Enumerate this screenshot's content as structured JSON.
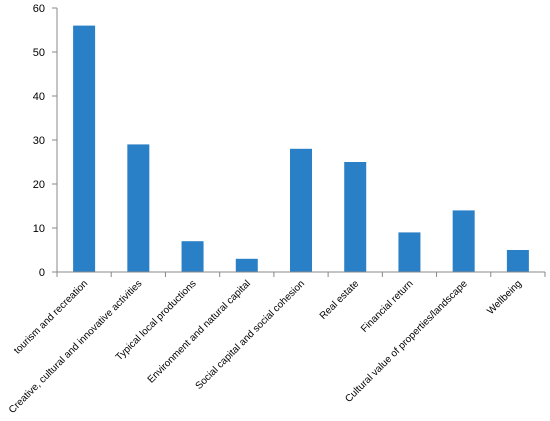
{
  "chart_data": {
    "type": "bar",
    "title": "",
    "xlabel": "",
    "ylabel": "",
    "ylim": [
      0,
      60
    ],
    "yticks": [
      0,
      10,
      20,
      30,
      40,
      50,
      60
    ],
    "grid": false,
    "bar_color": "#2a80c6",
    "categories": [
      "tourism and recreation",
      "Creative, cultural and innovative activities",
      "Typical local productions",
      "Environment and natural capital",
      "Social capital and social cohesion",
      "Real estate",
      "Financial return",
      "Cultural value of properties/landscape",
      "Wellbeing"
    ],
    "values": [
      56,
      29,
      7,
      3,
      28,
      25,
      9,
      14,
      5
    ]
  }
}
